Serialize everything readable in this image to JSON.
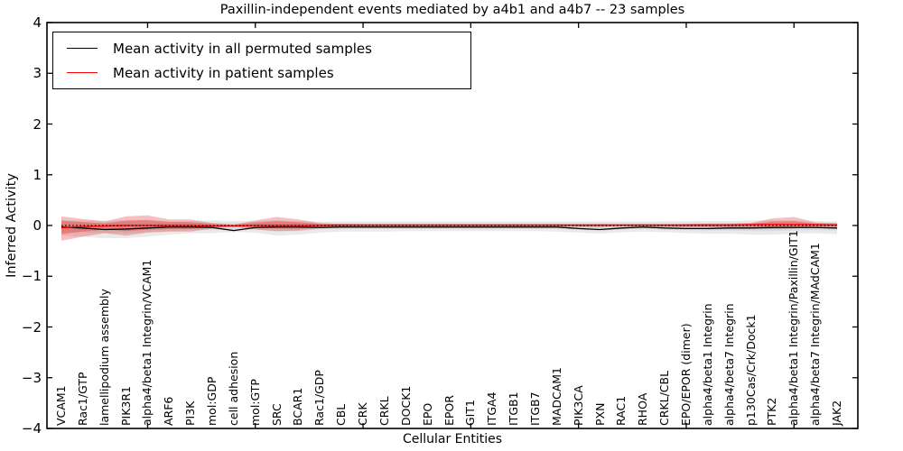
{
  "figure": {
    "title": "Paxillin-independent events mediated by a4b1 and a4b7 -- 23 samples"
  },
  "legend": {
    "items": [
      {
        "label": "Mean activity in all permuted samples",
        "color": "#000000"
      },
      {
        "label": "Mean activity in patient samples",
        "color": "#ff0000"
      }
    ]
  },
  "axes": {
    "x_label": "Cellular Entities",
    "y_label": "Inferred Activity"
  },
  "chart_data": {
    "type": "line",
    "title": "Paxillin-independent events mediated by a4b1 and a4b7 -- 23 samples",
    "xlabel": "Cellular Entities",
    "ylabel": "Inferred Activity",
    "ylim": [
      -4,
      4
    ],
    "yticks": [
      4,
      3,
      2,
      1,
      0,
      -1,
      -2,
      -3,
      -4
    ],
    "grid": false,
    "legend_position": "upper left",
    "zero_line": 0,
    "top_tick_indices": [
      4,
      9,
      14,
      19,
      24,
      29,
      34
    ],
    "categories": [
      "VCAM1",
      "Rac1/GTP",
      "lamellipodium assembly",
      "PIK3R1",
      "alpha4/beta1 Integrin/VCAM1",
      "ARF6",
      "PI3K",
      "mol:GDP",
      "cell adhesion",
      "mol:GTP",
      "SRC",
      "BCAR1",
      "Rac1/GDP",
      "CBL",
      "CRK",
      "CRKL",
      "DOCK1",
      "EPO",
      "EPOR",
      "GIT1",
      "ITGA4",
      "ITGB1",
      "ITGB7",
      "MADCAM1",
      "PIK3CA",
      "PXN",
      "RAC1",
      "RHOA",
      "CRKL/CBL",
      "EPO/EPOR (dimer)",
      "alpha4/beta1 Integrin",
      "alpha4/beta7 Integrin",
      "p130Cas/Crk/Dock1",
      "PTK2",
      "alpha4/beta1 Integrin/Paxillin/GIT1",
      "alpha4/beta7 Integrin/MAdCAM1",
      "JAK2"
    ],
    "series": [
      {
        "name": "Mean activity in all permuted samples",
        "color": "#000000",
        "values": [
          -0.03,
          -0.05,
          -0.08,
          -0.07,
          -0.05,
          -0.03,
          -0.03,
          -0.04,
          -0.1,
          -0.04,
          -0.03,
          -0.03,
          -0.04,
          -0.03,
          -0.03,
          -0.03,
          -0.03,
          -0.03,
          -0.03,
          -0.03,
          -0.03,
          -0.03,
          -0.03,
          -0.03,
          -0.06,
          -0.08,
          -0.05,
          -0.03,
          -0.05,
          -0.06,
          -0.06,
          -0.05,
          -0.05,
          -0.04,
          -0.04,
          -0.04,
          -0.05
        ]
      },
      {
        "name": "Mean activity in patient samples",
        "color": "#ff0000",
        "values": [
          -0.045,
          -0.02,
          -0.01,
          0.0,
          0.0,
          0.0,
          0.0,
          -0.01,
          -0.01,
          0.0,
          0.0,
          0.0,
          0.0,
          0.01,
          0.01,
          0.01,
          0.01,
          0.01,
          0.01,
          0.01,
          0.01,
          0.01,
          0.01,
          0.01,
          0.01,
          0.01,
          0.01,
          0.01,
          0.01,
          0.01,
          0.01,
          0.01,
          0.02,
          0.02,
          0.02,
          0.02,
          0.01
        ]
      }
    ],
    "bands": [
      {
        "name": "permuted-range-outer",
        "color": "#eaeaea",
        "upper": [
          0.1,
          0.1,
          0.1,
          0.1,
          0.1,
          0.09,
          0.09,
          0.1,
          0.09,
          0.09,
          0.1,
          0.09,
          0.08,
          0.08,
          0.08,
          0.08,
          0.08,
          0.08,
          0.08,
          0.08,
          0.08,
          0.08,
          0.08,
          0.08,
          0.08,
          0.08,
          0.08,
          0.08,
          0.09,
          0.09,
          0.09,
          0.09,
          0.1,
          0.1,
          0.1,
          0.09,
          0.08
        ],
        "lower": [
          -0.2,
          -0.22,
          -0.25,
          -0.25,
          -0.22,
          -0.18,
          -0.15,
          -0.15,
          -0.13,
          -0.14,
          -0.2,
          -0.18,
          -0.14,
          -0.12,
          -0.12,
          -0.12,
          -0.11,
          -0.11,
          -0.11,
          -0.11,
          -0.11,
          -0.11,
          -0.11,
          -0.12,
          -0.14,
          -0.16,
          -0.13,
          -0.12,
          -0.13,
          -0.15,
          -0.16,
          -0.16,
          -0.18,
          -0.18,
          -0.16,
          -0.15,
          -0.17
        ]
      },
      {
        "name": "permuted-range-inner",
        "color": "#dcdcdc",
        "upper": [
          0.06,
          0.06,
          0.06,
          0.06,
          0.06,
          0.05,
          0.05,
          0.06,
          0.05,
          0.05,
          0.06,
          0.05,
          0.05,
          0.05,
          0.05,
          0.05,
          0.05,
          0.05,
          0.05,
          0.05,
          0.05,
          0.05,
          0.05,
          0.05,
          0.05,
          0.05,
          0.05,
          0.05,
          0.05,
          0.05,
          0.05,
          0.05,
          0.06,
          0.06,
          0.06,
          0.05,
          0.05
        ],
        "lower": [
          -0.12,
          -0.13,
          -0.15,
          -0.15,
          -0.13,
          -0.11,
          -0.09,
          -0.09,
          -0.08,
          -0.08,
          -0.12,
          -0.11,
          -0.08,
          -0.07,
          -0.07,
          -0.07,
          -0.07,
          -0.07,
          -0.07,
          -0.07,
          -0.07,
          -0.07,
          -0.07,
          -0.07,
          -0.08,
          -0.1,
          -0.08,
          -0.07,
          -0.08,
          -0.09,
          -0.1,
          -0.1,
          -0.11,
          -0.11,
          -0.1,
          -0.09,
          -0.1
        ]
      },
      {
        "name": "patient-range-outer",
        "color": "rgba(225,45,45,0.30)",
        "upper": [
          0.18,
          0.13,
          0.08,
          0.18,
          0.2,
          0.12,
          0.12,
          0.05,
          0.02,
          0.1,
          0.17,
          0.12,
          0.05,
          0.03,
          0.02,
          0.02,
          0.02,
          0.02,
          0.02,
          0.02,
          0.02,
          0.02,
          0.02,
          0.02,
          0.02,
          0.02,
          0.02,
          0.02,
          0.02,
          0.03,
          0.04,
          0.04,
          0.05,
          0.14,
          0.17,
          0.06,
          0.05
        ],
        "lower": [
          -0.3,
          -0.22,
          -0.15,
          -0.2,
          -0.14,
          -0.12,
          -0.12,
          -0.06,
          -0.02,
          -0.08,
          -0.11,
          -0.1,
          -0.05,
          -0.03,
          -0.02,
          -0.02,
          -0.02,
          -0.02,
          -0.02,
          -0.02,
          -0.02,
          -0.02,
          -0.02,
          -0.02,
          -0.03,
          -0.03,
          -0.02,
          -0.02,
          -0.03,
          -0.04,
          -0.04,
          -0.05,
          -0.06,
          -0.07,
          -0.06,
          -0.03,
          -0.04
        ]
      },
      {
        "name": "patient-range-inner",
        "color": "rgba(225,45,45,0.35)",
        "upper": [
          0.1,
          0.07,
          0.04,
          0.1,
          0.11,
          0.07,
          0.07,
          0.03,
          0.01,
          0.06,
          0.09,
          0.07,
          0.03,
          0.02,
          0.01,
          0.01,
          0.01,
          0.01,
          0.01,
          0.01,
          0.01,
          0.01,
          0.01,
          0.01,
          0.01,
          0.01,
          0.01,
          0.01,
          0.01,
          0.02,
          0.02,
          0.02,
          0.03,
          0.08,
          0.09,
          0.03,
          0.03
        ],
        "lower": [
          -0.17,
          -0.12,
          -0.08,
          -0.11,
          -0.08,
          -0.07,
          -0.07,
          -0.03,
          -0.01,
          -0.04,
          -0.06,
          -0.06,
          -0.03,
          -0.02,
          -0.01,
          -0.01,
          -0.01,
          -0.01,
          -0.01,
          -0.01,
          -0.01,
          -0.01,
          -0.01,
          -0.01,
          -0.02,
          -0.02,
          -0.01,
          -0.01,
          -0.02,
          -0.02,
          -0.02,
          -0.03,
          -0.03,
          -0.04,
          -0.03,
          -0.02,
          -0.02
        ]
      }
    ]
  }
}
